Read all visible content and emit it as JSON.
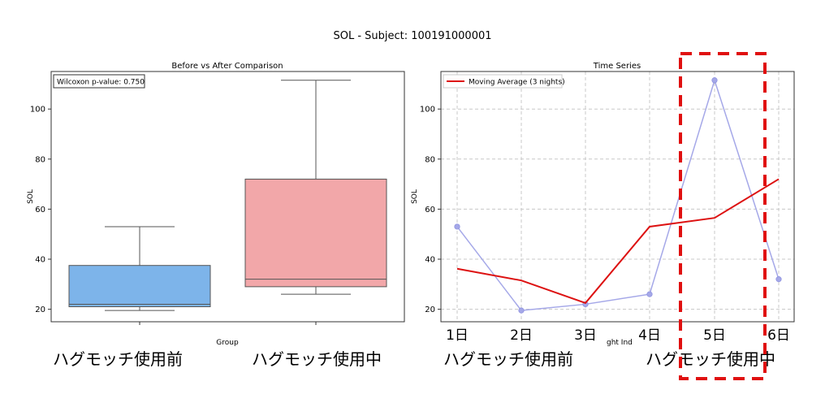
{
  "figure": {
    "title": "SOL - Subject: 100191000001"
  },
  "chart_data": [
    {
      "type": "box",
      "title": "Before vs After Comparison",
      "xlabel": "Group",
      "ylabel": "SOL",
      "annotation": "Wilcoxon p-value: 0.750",
      "ylim": [
        15,
        115
      ],
      "yticks": [
        20,
        40,
        60,
        80,
        100
      ],
      "groups": [
        {
          "name": "ハグモッチ使用前",
          "color": "#7db4ea",
          "whisker_low": 19.5,
          "q1": 21,
          "median": 22,
          "q3": 37.5,
          "whisker_high": 53
        },
        {
          "name": "ハグモッチ使用中",
          "color": "#f2a7a9",
          "whisker_low": 26,
          "q1": 29,
          "median": 32,
          "q3": 72,
          "whisker_high": 111.5
        }
      ],
      "group_labels": [
        "ハグモッチ使用前",
        "ハグモッチ使用中"
      ]
    },
    {
      "type": "line",
      "title": "Time Series",
      "xlabel_fragment": "ght Ind",
      "ylabel": "SOL",
      "ylim": [
        15,
        115
      ],
      "yticks": [
        20,
        40,
        60,
        80,
        100
      ],
      "x_labels": [
        "1日",
        "2日",
        "3日",
        "4日",
        "5日",
        "6日"
      ],
      "series": [
        {
          "key": "raw",
          "color": "#a5a8e8",
          "values": [
            53,
            19.5,
            22,
            26,
            111.5,
            32
          ]
        },
        {
          "key": "moving_average",
          "name": "Moving Average (3 nights)",
          "color": "#dd1111",
          "values": [
            36.2,
            31.5,
            22.5,
            53,
            56.5,
            72
          ]
        }
      ],
      "legend": "top-left",
      "group_labels": [
        "ハグモッチ使用前",
        "ハグモッチ使用中"
      ],
      "highlight": {
        "type": "dashed-box",
        "color": "#e01010",
        "around": "5日"
      }
    }
  ]
}
